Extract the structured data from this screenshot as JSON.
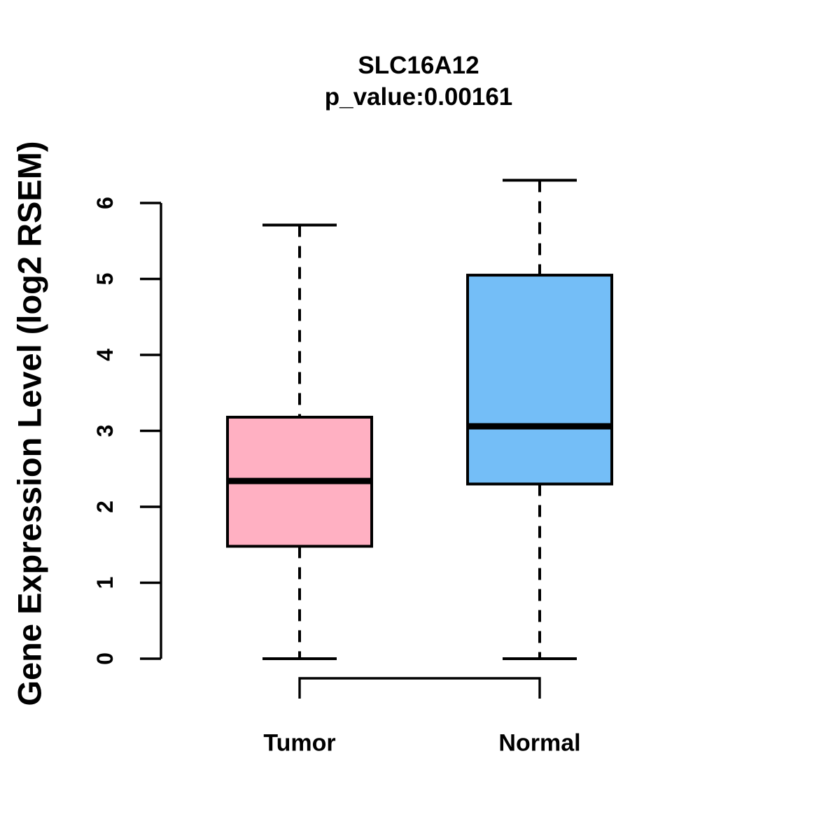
{
  "chart_data": {
    "type": "boxplot",
    "title": "SLC16A12",
    "subtitle": "p_value:0.00161",
    "ylabel": "Gene Expression Level (log2 RSEM)",
    "xlabel": "",
    "ylim": [
      0,
      6
    ],
    "yticks": [
      0,
      1,
      2,
      3,
      4,
      5,
      6
    ],
    "categories": [
      "Tumor",
      "Normal"
    ],
    "series": [
      {
        "name": "Tumor",
        "whisker_low": 0,
        "q1": 1.48,
        "median": 2.34,
        "q3": 3.18,
        "whisker_high": 5.71,
        "fill_color": "#FFB0C2"
      },
      {
        "name": "Normal",
        "whisker_low": 0,
        "q1": 2.3,
        "median": 3.06,
        "q3": 5.05,
        "whisker_high": 6.3,
        "fill_color": "#74BEF7"
      }
    ],
    "grid": false,
    "legend": "none",
    "whisker_style": "dashed",
    "colors": {
      "stroke": "#000000",
      "background": "#FFFFFF",
      "tumor_box": "#FFB0C2",
      "normal_box": "#74BEF7"
    }
  }
}
